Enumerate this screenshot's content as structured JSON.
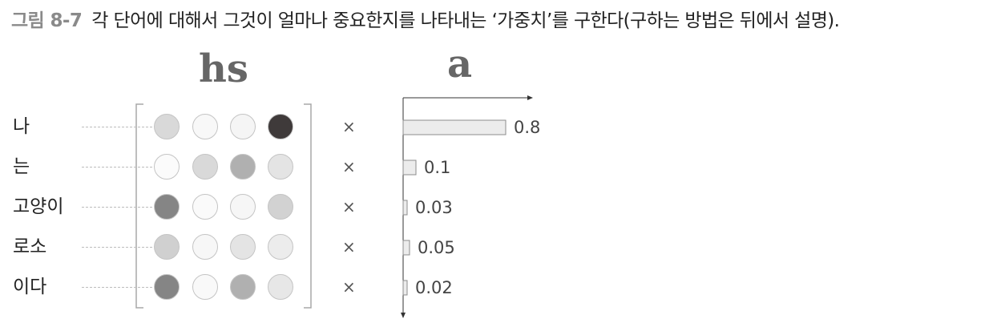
{
  "caption": {
    "figure_number": "그림 8-7",
    "text": "각 단어에 대해서 그것이 얼마나 중요한지를 나타내는 ‘가중치’를 구한다(구하는 방법은 뒤에서 설명)."
  },
  "labels": {
    "hs": "hs",
    "a": "a"
  },
  "multiply_symbol": "×",
  "rows": [
    {
      "word": "나",
      "hs_cells": [
        "#d9d9d9",
        "#f8f8f8",
        "#f5f5f5",
        "#3f3a3a"
      ],
      "weight": 0.8,
      "weight_label": "0.8"
    },
    {
      "word": "는",
      "hs_cells": [
        "#fbfbfb",
        "#d9d9d9",
        "#b0b0b0",
        "#e4e4e4"
      ],
      "weight": 0.1,
      "weight_label": "0.1"
    },
    {
      "word": "고양이",
      "hs_cells": [
        "#858585",
        "#fafafa",
        "#f6f6f6",
        "#d2d2d2"
      ],
      "weight": 0.03,
      "weight_label": "0.03"
    },
    {
      "word": "로소",
      "hs_cells": [
        "#d0d0d0",
        "#f7f7f7",
        "#e4e4e4",
        "#ececec"
      ],
      "weight": 0.05,
      "weight_label": "0.05"
    },
    {
      "word": "이다",
      "hs_cells": [
        "#858585",
        "#f9f9f9",
        "#b0b0b0",
        "#e7e7e7"
      ],
      "weight": 0.02,
      "weight_label": "0.02"
    }
  ],
  "colors": {
    "bar_fill": "#ececec",
    "bar_stroke": "#8c8c8c",
    "axis": "#333333",
    "bracket": "#a8a8a8"
  }
}
